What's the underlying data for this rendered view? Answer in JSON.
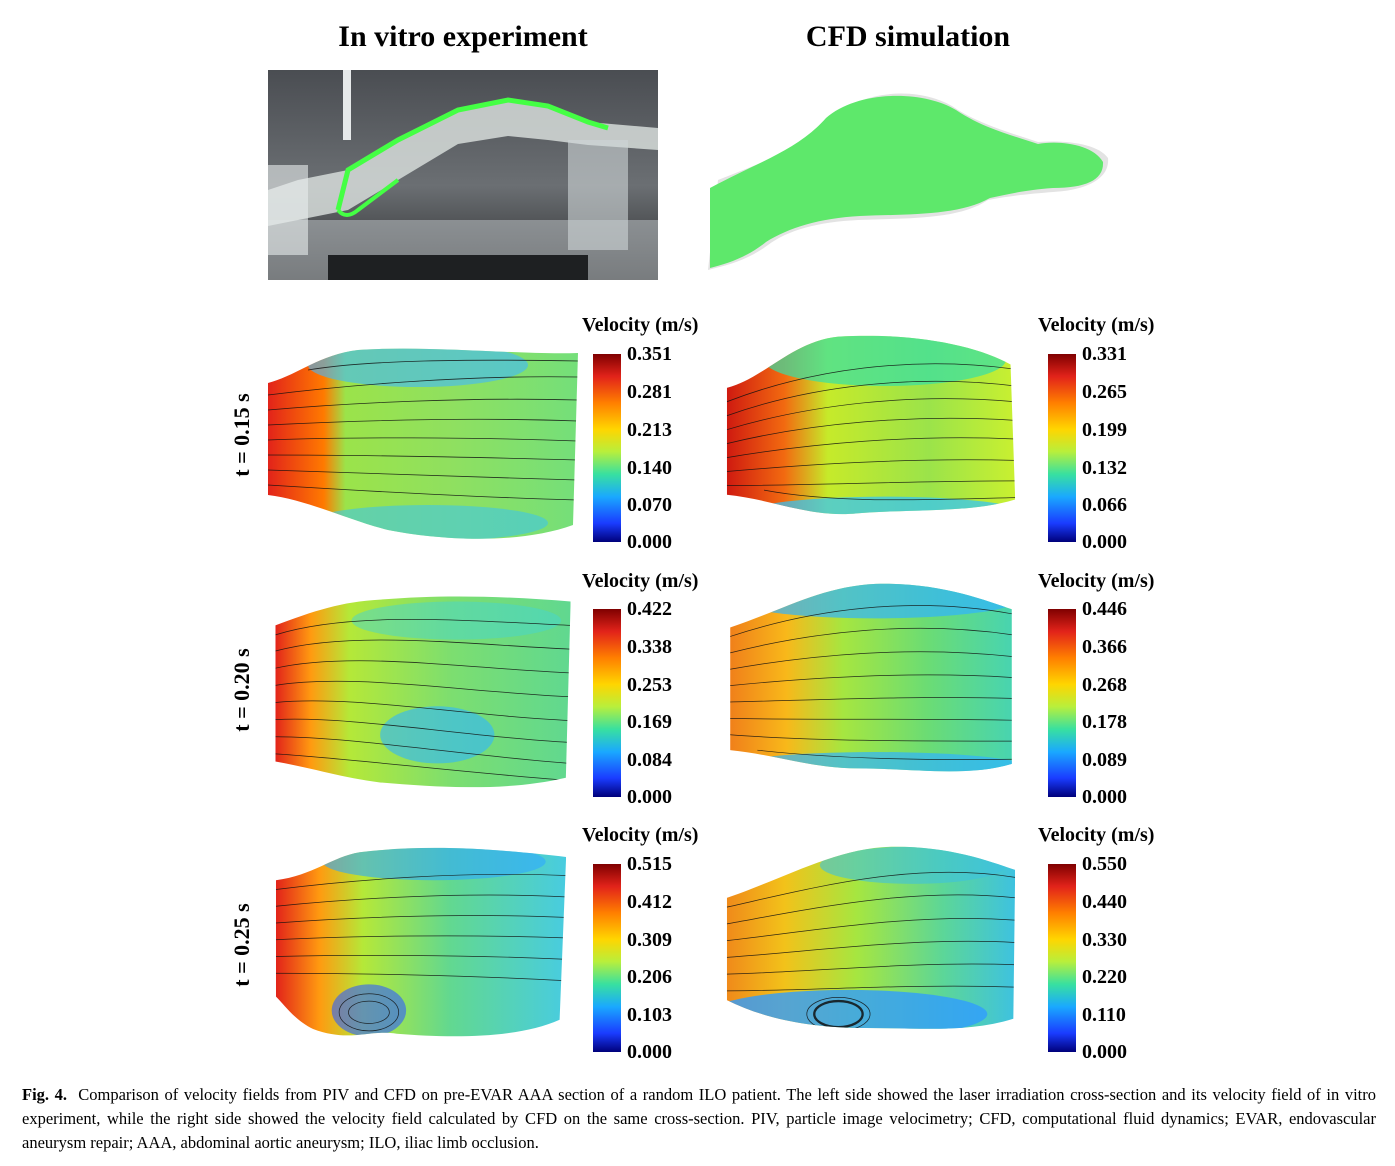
{
  "titles": {
    "left": "In vitro experiment",
    "right": "CFD simulation"
  },
  "colorbar_title": "Velocity (m/s)",
  "rows": [
    {
      "time": "t = 0.15 s",
      "piv_ticks": [
        "0.351",
        "0.281",
        "0.213",
        "0.140",
        "0.070",
        "0.000"
      ],
      "cfd_ticks": [
        "0.331",
        "0.265",
        "0.199",
        "0.132",
        "0.066",
        "0.000"
      ]
    },
    {
      "time": "t = 0.20 s",
      "piv_ticks": [
        "0.422",
        "0.338",
        "0.253",
        "0.169",
        "0.084",
        "0.000"
      ],
      "cfd_ticks": [
        "0.446",
        "0.366",
        "0.268",
        "0.178",
        "0.089",
        "0.000"
      ]
    },
    {
      "time": "t = 0.25 s",
      "piv_ticks": [
        "0.515",
        "0.412",
        "0.309",
        "0.206",
        "0.103",
        "0.000"
      ],
      "cfd_ticks": [
        "0.550",
        "0.440",
        "0.330",
        "0.220",
        "0.110",
        "0.000"
      ]
    }
  ],
  "caption": {
    "label": "Fig. 4.",
    "text": "Comparison of velocity fields from PIV and CFD on pre-EVAR AAA section of a random ILO patient. The left side showed the laser irradiation cross-section and its velocity field of in vitro experiment, while the right side showed the velocity field calculated by CFD on the same cross-section. PIV, particle image velocimetry; CFD, computational fluid dynamics; EVAR, endovascular aneurysm repair; AAA, abdominal aortic aneurysm; ILO, iliac limb occlusion."
  }
}
